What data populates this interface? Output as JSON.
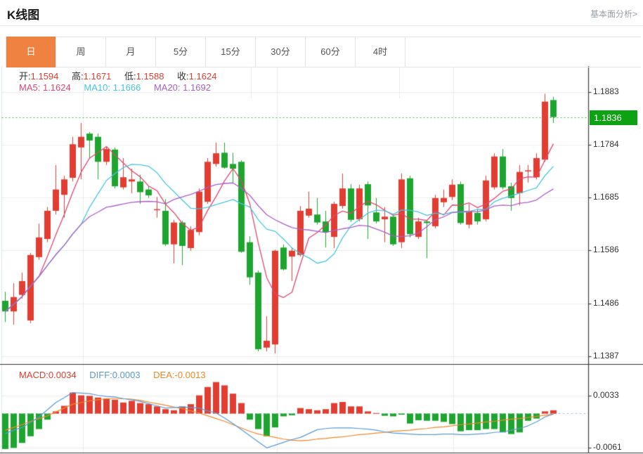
{
  "header": {
    "title": "K线图",
    "link": "基本面分析>"
  },
  "tabs": {
    "active_index": 0,
    "items": [
      {
        "label": "日"
      },
      {
        "label": "周"
      },
      {
        "label": "月"
      },
      {
        "label": "5分"
      },
      {
        "label": "15分"
      },
      {
        "label": "30分"
      },
      {
        "label": "60分"
      },
      {
        "label": "4时"
      }
    ]
  },
  "info": {
    "open_label": "开:",
    "open_value": "1.1594",
    "high_label": "高:",
    "high_value": "1.1671",
    "low_label": "低:",
    "low_value": "1.1588",
    "close_label": "收:",
    "close_value": "1.1624",
    "ma5_label": "MA5:",
    "ma5_value": "1.1624",
    "ma10_label": "MA10:",
    "ma10_value": "1.1666",
    "ma20_label": "MA20:",
    "ma20_value": "1.1692"
  },
  "macd_info": {
    "macd_label": "MACD:",
    "macd_value": "0.0034",
    "diff_label": "DIFF:",
    "diff_value": "0.0003",
    "dea_label": "DEA:",
    "dea_value": "-0.0013"
  },
  "badge": {
    "price": "1.1836"
  },
  "colors": {
    "up": "#e23d30",
    "down": "#1ea52f",
    "ma5": "#e0476f",
    "ma10": "#49c4dc",
    "ma20": "#a95fc4",
    "diff": "#5a9ad2",
    "dea": "#ef8829",
    "grid": "#ededed",
    "axis": "#3c3c3c",
    "separator": "#333333",
    "price_line": "#3db54a",
    "zero_line": "#aac6e2",
    "badge_bg": "#0da214",
    "tab_active": "#ef8240"
  },
  "chart_data": [
    {
      "type": "candlestick",
      "title": "K线图 (daily candles with MA5/MA10/MA20)",
      "ma_periods": [
        5,
        10,
        20
      ],
      "y_ticks": [
        1.1883,
        1.1784,
        1.1685,
        1.1586,
        1.1486,
        1.1387
      ],
      "ylim": [
        1.1387,
        1.1883
      ],
      "latest_price": 1.1836,
      "price_line": 1.1836,
      "ohlc": [
        [
          1.1491,
          1.1508,
          1.1451,
          1.1471
        ],
        [
          1.1471,
          1.1524,
          1.1446,
          1.1498
        ],
        [
          1.1502,
          1.1544,
          1.1495,
          1.1528
        ],
        [
          1.1454,
          1.1581,
          1.1449,
          1.1577
        ],
        [
          1.1573,
          1.1636,
          1.1568,
          1.161
        ],
        [
          1.1607,
          1.1667,
          1.1601,
          1.166
        ],
        [
          1.166,
          1.1746,
          1.1653,
          1.17
        ],
        [
          1.169,
          1.1726,
          1.1647,
          1.1719
        ],
        [
          1.1722,
          1.1799,
          1.1715,
          1.1785
        ],
        [
          1.1779,
          1.1825,
          1.1719,
          1.1799
        ],
        [
          1.1805,
          1.1808,
          1.1759,
          1.1792
        ],
        [
          1.1799,
          1.1805,
          1.1719,
          1.1752
        ],
        [
          1.1752,
          1.1781,
          1.1746,
          1.1776
        ],
        [
          1.1775,
          1.1779,
          1.1702,
          1.1706
        ],
        [
          1.1704,
          1.1759,
          1.17,
          1.1723
        ],
        [
          1.1715,
          1.1739,
          1.1693,
          1.1719
        ],
        [
          1.1715,
          1.1728,
          1.1673,
          1.1695
        ],
        [
          1.17,
          1.1706,
          1.1684,
          1.1689
        ],
        [
          1.1661,
          1.1686,
          1.1647,
          1.1663
        ],
        [
          1.166,
          1.1682,
          1.1594,
          1.1597
        ],
        [
          1.1597,
          1.1643,
          1.1561,
          1.1638
        ],
        [
          1.1638,
          1.1641,
          1.1558,
          1.1594
        ],
        [
          1.159,
          1.1631,
          1.1585,
          1.1624
        ],
        [
          1.162,
          1.1702,
          1.1614,
          1.1696
        ],
        [
          1.1677,
          1.1759,
          1.1673,
          1.1752
        ],
        [
          1.1748,
          1.1788,
          1.1743,
          1.1768
        ],
        [
          1.1769,
          1.1788,
          1.1739,
          1.1741
        ],
        [
          1.1748,
          1.1769,
          1.1713,
          1.1739
        ],
        [
          1.1752,
          1.1755,
          1.1581,
          1.1583
        ],
        [
          1.1601,
          1.1612,
          1.1521,
          1.1535
        ],
        [
          1.1544,
          1.1548,
          1.1396,
          1.14
        ],
        [
          1.1403,
          1.1462,
          1.1396,
          1.1416
        ],
        [
          1.1409,
          1.1587,
          1.1392,
          1.1585
        ],
        [
          1.1591,
          1.1597,
          1.1548,
          1.155
        ],
        [
          1.1574,
          1.1591,
          1.1528,
          1.1585
        ],
        [
          1.1577,
          1.1669,
          1.1574,
          1.166
        ],
        [
          1.1651,
          1.1696,
          1.1647,
          1.1664
        ],
        [
          1.1653,
          1.1684,
          1.1634,
          1.1638
        ],
        [
          1.164,
          1.166,
          1.1591,
          1.162
        ],
        [
          1.1611,
          1.1677,
          1.159,
          1.1673
        ],
        [
          1.1669,
          1.173,
          1.1664,
          1.1702
        ],
        [
          1.1702,
          1.171,
          1.1639,
          1.1643
        ],
        [
          1.1644,
          1.1709,
          1.164,
          1.1702
        ],
        [
          1.171,
          1.1715,
          1.1607,
          1.167
        ],
        [
          1.1657,
          1.1684,
          1.1636,
          1.164
        ],
        [
          1.1644,
          1.1667,
          1.1601,
          1.1649
        ],
        [
          1.1649,
          1.1653,
          1.1594,
          1.1597
        ],
        [
          1.1601,
          1.173,
          1.159,
          1.1719
        ],
        [
          1.1721,
          1.1726,
          1.161,
          1.1616
        ],
        [
          1.1611,
          1.1647,
          1.1607,
          1.164
        ],
        [
          1.164,
          1.1643,
          1.1571,
          1.1637
        ],
        [
          1.1631,
          1.169,
          1.1627,
          1.1684
        ],
        [
          1.1676,
          1.17,
          1.1667,
          1.1684
        ],
        [
          1.1686,
          1.1719,
          1.168,
          1.1709
        ],
        [
          1.171,
          1.1715,
          1.1634,
          1.1637
        ],
        [
          1.1634,
          1.1673,
          1.1627,
          1.166
        ],
        [
          1.1656,
          1.1664,
          1.1634,
          1.164
        ],
        [
          1.1644,
          1.1726,
          1.164,
          1.1717
        ],
        [
          1.1704,
          1.1768,
          1.17,
          1.1762
        ],
        [
          1.1762,
          1.1776,
          1.17,
          1.1704
        ],
        [
          1.1706,
          1.1713,
          1.166,
          1.1684
        ],
        [
          1.1693,
          1.1746,
          1.167,
          1.1733
        ],
        [
          1.1734,
          1.1746,
          1.1713,
          1.1736
        ],
        [
          1.1723,
          1.1768,
          1.1719,
          1.1759
        ],
        [
          1.1756,
          1.188,
          1.1752,
          1.1865
        ],
        [
          1.1868,
          1.1874,
          1.1825,
          1.1836
        ]
      ]
    },
    {
      "type": "bar",
      "title": "MACD (12,26,9)",
      "y_ticks": [
        0.0033,
        -0.0061
      ],
      "histogram": [
        -0.0064,
        -0.0062,
        -0.0053,
        -0.0041,
        -0.0028,
        -0.0011,
        0.0004,
        0.0014,
        0.0038,
        0.0033,
        0.0032,
        0.0029,
        0.0027,
        0.0025,
        0.002,
        0.0023,
        0.0019,
        0.0017,
        0.0013,
        0.0008,
        0.0006,
        0.0013,
        0.0017,
        0.0033,
        0.0048,
        0.0057,
        0.0051,
        0.0036,
        0.0019,
        -0.0011,
        -0.0028,
        -0.0041,
        -0.0025,
        -0.0005,
        -0.0003,
        0.001,
        0.0008,
        0.0006,
        0.0008,
        0.0019,
        0.0021,
        0.0013,
        0.0013,
        0.0004,
        0.0001,
        -0.0004,
        -0.0005,
        -0.0002,
        -0.0018,
        -0.0012,
        -0.0013,
        -0.0013,
        -0.0015,
        -0.0019,
        -0.0032,
        -0.003,
        -0.003,
        -0.0028,
        -0.0028,
        -0.0034,
        -0.0037,
        -0.0034,
        -0.0013,
        -0.0009,
        0.0004,
        0.0006
      ],
      "diff": [
        -0.0036,
        -0.003,
        -0.0025,
        -0.0016,
        -0.0006,
        0.0007,
        0.002,
        0.0029,
        0.0038,
        0.0037,
        0.0036,
        0.0033,
        0.0031,
        0.003,
        0.0027,
        0.0025,
        0.0022,
        0.0018,
        0.0014,
        0.001,
        0.0011,
        0.0012,
        0.0011,
        0.001,
        0.0005,
        0.0001,
        -0.0008,
        -0.0018,
        -0.0029,
        -0.004,
        -0.0051,
        -0.0062,
        -0.0057,
        -0.0052,
        -0.0047,
        -0.0043,
        -0.0036,
        -0.0029,
        -0.0027,
        -0.0026,
        -0.0026,
        -0.0026,
        -0.0027,
        -0.0028,
        -0.003,
        -0.0033,
        -0.0035,
        -0.0036,
        -0.0037,
        -0.0038,
        -0.0038,
        -0.0038,
        -0.0037,
        -0.0037,
        -0.0038,
        -0.0038,
        -0.0037,
        -0.0036,
        -0.0034,
        -0.0033,
        -0.003,
        -0.0027,
        -0.0022,
        -0.0015,
        -0.0006,
        -0.0001
      ],
      "dea": [
        -0.003,
        -0.0025,
        -0.002,
        -0.0014,
        -0.0009,
        -0.0004,
        0.0003,
        0.001,
        0.0017,
        0.002,
        0.0023,
        0.0025,
        0.0027,
        0.0027,
        0.0027,
        0.0026,
        0.0024,
        0.0021,
        0.0018,
        0.0015,
        0.0012,
        0.0009,
        0.0005,
        0.0001,
        -0.0004,
        -0.0009,
        -0.0014,
        -0.002,
        -0.0026,
        -0.0032,
        -0.0037,
        -0.004,
        -0.0043,
        -0.0046,
        -0.0048,
        -0.0049,
        -0.0048,
        -0.0046,
        -0.0045,
        -0.0043,
        -0.0042,
        -0.004,
        -0.0038,
        -0.0037,
        -0.0035,
        -0.0034,
        -0.0032,
        -0.0031,
        -0.003,
        -0.0028,
        -0.0027,
        -0.0025,
        -0.0024,
        -0.0022,
        -0.002,
        -0.0019,
        -0.0017,
        -0.0015,
        -0.0014,
        -0.0012,
        -0.001,
        -0.0009,
        -0.0007,
        -0.0005,
        -0.0003,
        -0.0001
      ]
    }
  ]
}
